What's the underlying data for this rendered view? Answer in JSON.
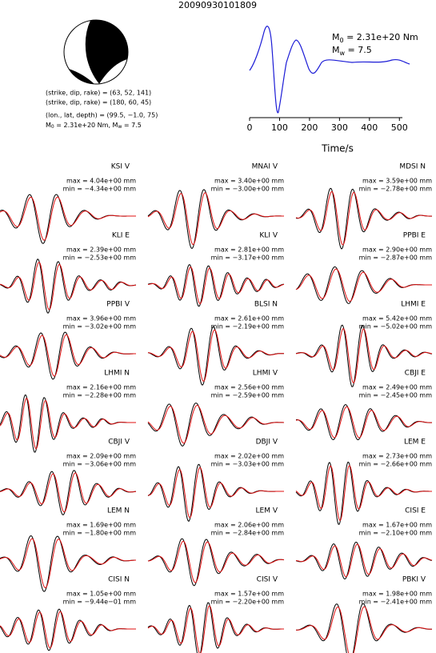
{
  "title": "20090930101809",
  "focal_mechanism": {
    "plane_1": "(strike, dip, rake) = (63, 52, 141)",
    "plane_2": "(strike, dip, rake) = (180, 60, 45)",
    "location": "(lon., lat, depth) = (99.5, −1.0, 75)",
    "moment": {
      "m": "M",
      "sub0": "0",
      "mid": " = 2.31e+20 Nm, M",
      "subw": "w",
      "end": " = 7.5"
    }
  },
  "chart_data": {
    "type": "line",
    "xlabel": "Time/s",
    "xlim": [
      0,
      510
    ],
    "xticks": [
      0,
      100,
      200,
      300,
      400,
      500
    ],
    "annotations": {
      "m0": {
        "m": "M",
        "sub": "0",
        "text": " = 2.31e+20 Nm"
      },
      "mw": {
        "m": "M",
        "sub": "w",
        "text": " = 7.5"
      }
    }
  },
  "stations": [
    {
      "name": "KSI V",
      "max": "max = 4.04e+00 mm",
      "min": "min = −4.34e+00 mm"
    },
    {
      "name": "MNAI V",
      "max": "max = 3.40e+00 mm",
      "min": "min = −3.00e+00 mm"
    },
    {
      "name": "MDSI N",
      "max": "max = 3.59e+00 mm",
      "min": "min = −2.78e+00 mm"
    },
    {
      "name": "KLI E",
      "max": "max = 2.39e+00 mm",
      "min": "min = −2.53e+00 mm"
    },
    {
      "name": "KLI V",
      "max": "max = 2.81e+00 mm",
      "min": "min = −3.17e+00 mm"
    },
    {
      "name": "PPBI E",
      "max": "max = 2.90e+00 mm",
      "min": "min = −2.87e+00 mm"
    },
    {
      "name": "PPBI V",
      "max": "max = 3.96e+00 mm",
      "min": "min = −3.02e+00 mm"
    },
    {
      "name": "BLSI N",
      "max": "max = 2.61e+00 mm",
      "min": "min = −2.19e+00 mm"
    },
    {
      "name": "LHMI E",
      "max": "max = 5.42e+00 mm",
      "min": "min = −5.02e+00 mm"
    },
    {
      "name": "LHMI N",
      "max": "max = 2.16e+00 mm",
      "min": "min = −2.28e+00 mm"
    },
    {
      "name": "LHMI V",
      "max": "max = 2.56e+00 mm",
      "min": "min = −2.59e+00 mm"
    },
    {
      "name": "CBJI E",
      "max": "max = 2.49e+00 mm",
      "min": "min = −2.45e+00 mm"
    },
    {
      "name": "CBJI V",
      "max": "max = 2.09e+00 mm",
      "min": "min = −3.06e+00 mm"
    },
    {
      "name": "DBJI V",
      "max": "max = 2.02e+00 mm",
      "min": "min = −3.03e+00 mm"
    },
    {
      "name": "LEM E",
      "max": "max = 2.73e+00 mm",
      "min": "min = −2.66e+00 mm"
    },
    {
      "name": "LEM N",
      "max": "max = 1.69e+00 mm",
      "min": "min = −1.80e+00 mm"
    },
    {
      "name": "LEM V",
      "max": "max = 2.06e+00 mm",
      "min": "min = −2.84e+00 mm"
    },
    {
      "name": "CISI E",
      "max": "max = 1.67e+00 mm",
      "min": "min = −2.10e+00 mm"
    },
    {
      "name": "CISI N",
      "max": "max = 1.05e+00 mm",
      "min": "min = −9.44e−01 mm"
    },
    {
      "name": "CISI V",
      "max": "max = 1.57e+00 mm",
      "min": "min = −2.20e+00 mm"
    },
    {
      "name": "PBKI V",
      "max": "max = 1.98e+00 mm",
      "min": "min = −2.41e+00 mm"
    }
  ]
}
